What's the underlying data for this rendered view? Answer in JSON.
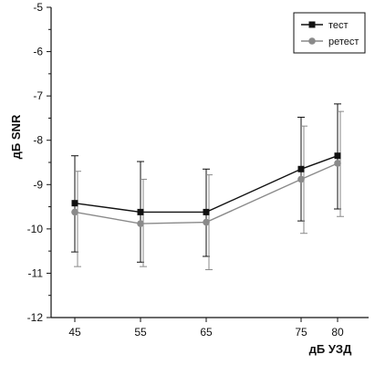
{
  "chart_data": {
    "type": "line",
    "title": "",
    "xlabel": "дБ УЗД",
    "ylabel": "дБ SNR",
    "categories": [
      "45",
      "55",
      "65",
      "75",
      "80"
    ],
    "ylim": [
      -12,
      -5
    ],
    "yticks": [
      -5,
      -6,
      -7,
      -8,
      -9,
      -10,
      -11,
      -12
    ],
    "grid": false,
    "legend_position": "top-right",
    "series": [
      {
        "name": "тест",
        "marker": "square",
        "color": "#111111",
        "values": [
          -9.42,
          -9.62,
          -9.62,
          -8.65,
          -8.35
        ],
        "error_upper": [
          -8.35,
          -8.48,
          -8.65,
          -7.48,
          -7.18
        ],
        "error_lower": [
          -10.52,
          -10.75,
          -10.62,
          -9.82,
          -9.55
        ]
      },
      {
        "name": "ретест",
        "marker": "circle",
        "color": "#8a8a8a",
        "values": [
          -9.62,
          -9.88,
          -9.85,
          -8.88,
          -8.52
        ],
        "error_upper": [
          -8.7,
          -8.88,
          -8.78,
          -7.68,
          -7.35
        ],
        "error_lower": [
          -10.85,
          -10.85,
          -10.92,
          -10.1,
          -9.72
        ]
      }
    ]
  }
}
